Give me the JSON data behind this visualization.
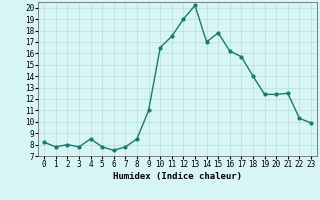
{
  "x": [
    0,
    1,
    2,
    3,
    4,
    5,
    6,
    7,
    8,
    9,
    10,
    11,
    12,
    13,
    14,
    15,
    16,
    17,
    18,
    19,
    20,
    21,
    22,
    23
  ],
  "y": [
    8.2,
    7.8,
    8.0,
    7.8,
    8.5,
    7.8,
    7.5,
    7.8,
    8.5,
    11.0,
    16.5,
    17.5,
    19.0,
    20.2,
    17.0,
    17.8,
    16.2,
    15.7,
    14.0,
    12.4,
    12.4,
    12.5,
    10.3,
    9.9
  ],
  "line_color": "#1a7a6e",
  "marker": "o",
  "marker_size": 2.0,
  "line_width": 1.0,
  "bg_color": "#d8f5f5",
  "grid_color": "#b8dede",
  "xlabel": "Humidex (Indice chaleur)",
  "xlim": [
    -0.5,
    23.5
  ],
  "ylim": [
    7,
    20.5
  ],
  "xtick_labels": [
    "0",
    "1",
    "2",
    "3",
    "4",
    "5",
    "6",
    "7",
    "8",
    "9",
    "10",
    "11",
    "12",
    "13",
    "14",
    "15",
    "16",
    "17",
    "18",
    "19",
    "20",
    "21",
    "22",
    "23"
  ],
  "ytick_vals": [
    7,
    8,
    9,
    10,
    11,
    12,
    13,
    14,
    15,
    16,
    17,
    18,
    19,
    20
  ],
  "xlabel_fontsize": 6.5,
  "tick_fontsize": 5.5
}
